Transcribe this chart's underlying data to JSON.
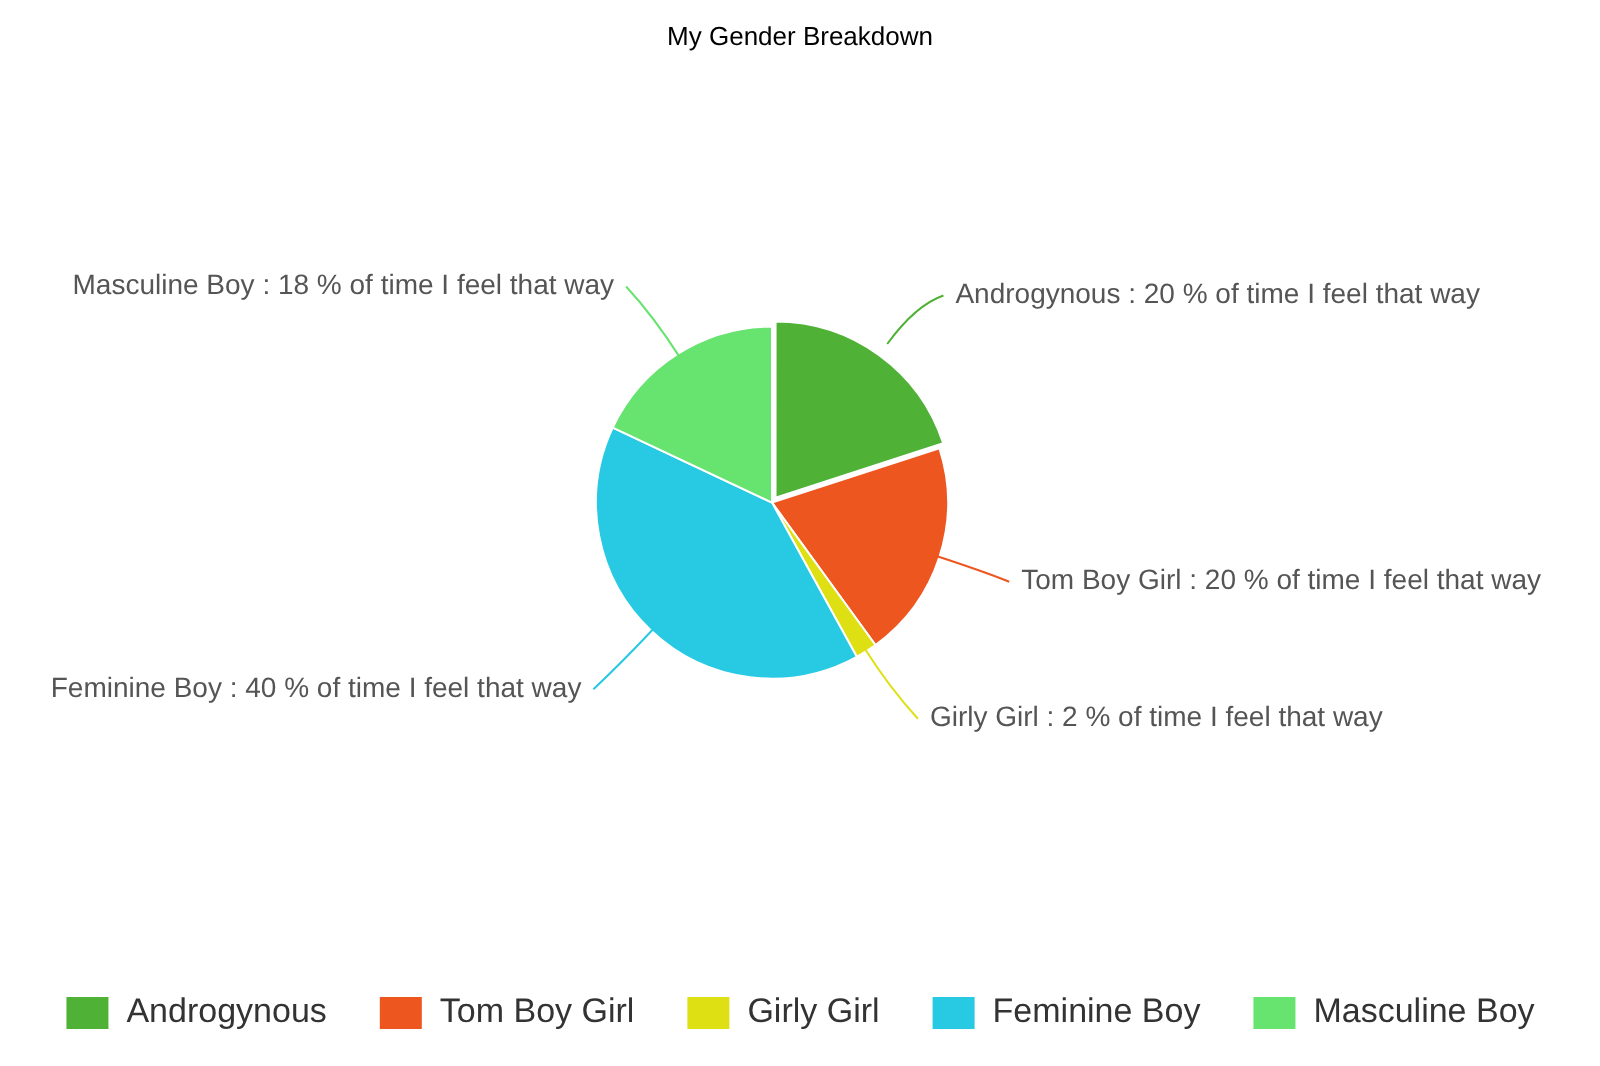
{
  "chart_data": {
    "type": "pie",
    "title": "My Gender Breakdown",
    "categories": [
      "Androgynous",
      "Tom Boy Girl",
      "Girly Girl",
      "Feminine Boy",
      "Masculine Boy"
    ],
    "values": [
      20,
      20,
      2,
      40,
      18
    ],
    "colors": [
      "#4fb135",
      "#ee5620",
      "#dfe013",
      "#27c9e3",
      "#67e36f"
    ],
    "value_labels": [
      "Androgynous : 20 % of time I feel that way",
      "Tom Boy Girl : 20 % of time I feel that way",
      "Girly Girl : 2 % of time I feel that way",
      "Feminine Boy : 40 % of time I feel that way",
      "Masculine Boy : 18 % of time I feel that way"
    ],
    "legend": "bottom"
  }
}
